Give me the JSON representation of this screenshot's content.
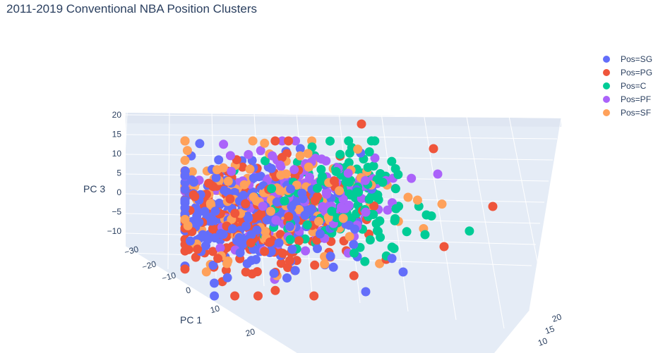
{
  "chart_data": {
    "type": "scatter",
    "title": "2011-2019 Conventional NBA Position Clusters",
    "axes": {
      "x": {
        "label": "PC 1",
        "ticks": [
          "-30",
          "-20",
          "-10",
          "0",
          "10",
          "20"
        ]
      },
      "y": {
        "label": "",
        "ticks": [
          "20",
          "15",
          "10"
        ]
      },
      "z": {
        "label": "PC 3",
        "ticks": [
          "20",
          "15",
          "10",
          "5",
          "0",
          "-5",
          "-10"
        ]
      }
    },
    "legend_position": "top-right",
    "series": [
      {
        "name": "Pos=SG",
        "color": "#636efa",
        "count": 260
      },
      {
        "name": "Pos=PG",
        "color": "#ef553b",
        "count": 230
      },
      {
        "name": "Pos=C",
        "color": "#00cc96",
        "count": 150
      },
      {
        "name": "Pos=PF",
        "color": "#ab63fa",
        "count": 150
      },
      {
        "name": "Pos=SF",
        "color": "#ffa15a",
        "count": 160
      }
    ]
  }
}
